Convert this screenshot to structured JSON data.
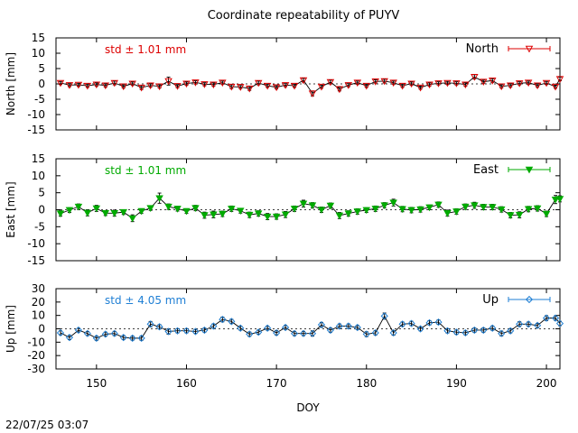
{
  "chart_data": [
    {
      "type": "line",
      "title": "Coordinate repeatability of PUYV",
      "ylabel": "North [mm]",
      "xlabel": "",
      "xlim": [
        145.5,
        201.5
      ],
      "ylim": [
        -15,
        15
      ],
      "yticks": [
        "15",
        "10",
        "5",
        "0",
        "-5",
        "-10",
        "-15"
      ],
      "xticks": [],
      "std_label": "std ± 1.01 mm",
      "legend": "North",
      "color": "#dd0000",
      "marker": "triangle-down-open",
      "x": [
        146,
        147,
        148,
        149,
        150,
        151,
        152,
        153,
        154,
        155,
        156,
        157,
        158,
        159,
        160,
        161,
        162,
        163,
        164,
        165,
        166,
        167,
        168,
        169,
        170,
        171,
        172,
        173,
        174,
        175,
        176,
        177,
        178,
        179,
        180,
        181,
        182,
        183,
        184,
        185,
        186,
        187,
        188,
        189,
        190,
        191,
        192,
        193,
        194,
        195,
        196,
        197,
        198,
        199,
        200,
        201,
        201.5
      ],
      "values": [
        0.3,
        -0.4,
        -0.3,
        -0.6,
        -0.2,
        -0.5,
        0.3,
        -0.8,
        0.1,
        -1.2,
        -0.5,
        -0.8,
        0.9,
        -0.7,
        0.1,
        0.5,
        -0.1,
        -0.2,
        0.4,
        -0.9,
        -1.0,
        -1.5,
        0.3,
        -0.6,
        -1.1,
        -0.4,
        -0.6,
        1.2,
        -3.1,
        -0.9,
        0.6,
        -1.7,
        -0.4,
        0.4,
        -0.6,
        0.8,
        0.9,
        0.4,
        -0.6,
        0.1,
        -1.2,
        -0.2,
        0.2,
        0.3,
        0.2,
        -0.2,
        2.3,
        0.7,
        1.1,
        -0.8,
        -0.5,
        0.2,
        0.4,
        -0.5,
        0.3,
        -0.9,
        1.6
      ],
      "errors": [
        0.5,
        0.5,
        0.5,
        0.5,
        0.5,
        0.5,
        0.6,
        0.5,
        0.5,
        0.6,
        0.5,
        0.5,
        1.3,
        0.5,
        0.5,
        0.5,
        0.5,
        0.5,
        0.5,
        0.6,
        0.5,
        0.6,
        0.6,
        0.5,
        0.5,
        0.5,
        0.5,
        0.6,
        0.8,
        0.5,
        0.6,
        0.6,
        0.5,
        0.5,
        0.5,
        0.5,
        0.6,
        0.5,
        0.5,
        0.5,
        0.5,
        0.5,
        0.5,
        0.5,
        0.5,
        0.5,
        0.7,
        0.5,
        0.6,
        0.5,
        0.5,
        0.5,
        0.5,
        0.5,
        0.5,
        0.5,
        0.6
      ]
    },
    {
      "type": "line",
      "title": "",
      "ylabel": "East [mm]",
      "xlabel": "",
      "xlim": [
        145.5,
        201.5
      ],
      "ylim": [
        -15,
        15
      ],
      "yticks": [
        "15",
        "10",
        "5",
        "0",
        "-5",
        "-10",
        "-15"
      ],
      "xticks": [],
      "std_label": "std ± 1.01 mm",
      "legend": "East",
      "color": "#00aa00",
      "marker": "triangle-down-filled",
      "x": [
        146,
        147,
        148,
        149,
        150,
        151,
        152,
        153,
        154,
        155,
        156,
        157,
        158,
        159,
        160,
        161,
        162,
        163,
        164,
        165,
        166,
        167,
        168,
        169,
        170,
        171,
        172,
        173,
        174,
        175,
        176,
        177,
        178,
        179,
        180,
        181,
        182,
        183,
        184,
        185,
        186,
        187,
        188,
        189,
        190,
        191,
        192,
        193,
        194,
        195,
        196,
        197,
        198,
        199,
        200,
        201,
        201.5
      ],
      "values": [
        -1.1,
        -0.1,
        0.9,
        -0.9,
        0.4,
        -1.0,
        -1.0,
        -0.7,
        -2.5,
        -0.4,
        0.5,
        3.4,
        0.9,
        0.3,
        -0.4,
        0.5,
        -1.6,
        -1.4,
        -1.2,
        0.3,
        -0.3,
        -1.5,
        -1.1,
        -2.0,
        -2.0,
        -1.4,
        0.3,
        1.8,
        1.3,
        0.0,
        1.2,
        -1.7,
        -1.1,
        -0.5,
        -0.1,
        0.3,
        1.3,
        2.1,
        0.2,
        -0.1,
        0.1,
        0.7,
        1.5,
        -1.0,
        -0.5,
        0.9,
        1.3,
        0.8,
        0.8,
        0.1,
        -1.6,
        -1.5,
        0.2,
        0.4,
        -1.2,
        3.0,
        3.2
      ],
      "errors": [
        0.8,
        0.7,
        0.8,
        0.9,
        0.9,
        0.7,
        0.9,
        0.7,
        1.0,
        0.7,
        0.7,
        1.5,
        0.8,
        0.7,
        0.7,
        0.8,
        0.9,
        1.0,
        0.8,
        0.8,
        0.7,
        0.8,
        0.8,
        0.9,
        0.8,
        0.9,
        0.8,
        1.0,
        0.8,
        0.8,
        0.8,
        0.9,
        0.8,
        0.8,
        0.7,
        0.8,
        0.8,
        1.0,
        0.8,
        0.8,
        0.8,
        0.7,
        0.8,
        0.9,
        0.8,
        0.8,
        0.9,
        0.8,
        0.8,
        0.8,
        0.8,
        0.9,
        0.8,
        0.8,
        0.8,
        1.2,
        0.9
      ]
    },
    {
      "type": "line",
      "title": "",
      "ylabel": "Up [mm]",
      "xlabel": "DOY",
      "xlim": [
        145.5,
        201.5
      ],
      "ylim": [
        -30,
        30
      ],
      "yticks": [
        "30",
        "20",
        "10",
        "0",
        "-10",
        "-20",
        "-30"
      ],
      "xticks": [
        "150",
        "160",
        "170",
        "180",
        "190",
        "200"
      ],
      "std_label": "std ± 4.05 mm",
      "legend": "Up",
      "color": "#1f7fd4",
      "marker": "diamond-open",
      "x": [
        146,
        147,
        148,
        149,
        150,
        151,
        152,
        153,
        154,
        155,
        156,
        157,
        158,
        159,
        160,
        161,
        162,
        163,
        164,
        165,
        166,
        167,
        168,
        169,
        170,
        171,
        172,
        173,
        174,
        175,
        176,
        177,
        178,
        179,
        180,
        181,
        182,
        183,
        184,
        185,
        186,
        187,
        188,
        189,
        190,
        191,
        192,
        193,
        194,
        195,
        196,
        197,
        198,
        199,
        200,
        201,
        201.5
      ],
      "values": [
        -3.0,
        -6.5,
        -1.0,
        -3.5,
        -7.0,
        -4.0,
        -3.5,
        -6.5,
        -7.0,
        -7.0,
        3.5,
        1.5,
        -2.0,
        -1.5,
        -1.5,
        -2.0,
        -1.0,
        2.0,
        7.0,
        5.5,
        0.5,
        -4.0,
        -2.5,
        0.5,
        -3.0,
        1.0,
        -3.5,
        -3.5,
        -3.5,
        3.0,
        -1.0,
        2.0,
        2.0,
        1.0,
        -4.0,
        -3.0,
        9.5,
        -3.0,
        3.5,
        4.0,
        0.0,
        4.5,
        5.0,
        -1.5,
        -2.5,
        -3.0,
        -1.0,
        -1.0,
        0.5,
        -3.5,
        -1.5,
        3.5,
        3.5,
        2.5,
        8.0,
        8.0,
        4.0
      ],
      "errors": [
        1.5,
        1.6,
        1.4,
        1.5,
        1.6,
        1.5,
        1.6,
        1.5,
        1.5,
        1.6,
        2.0,
        1.6,
        2.0,
        1.5,
        1.5,
        1.5,
        1.5,
        1.6,
        1.8,
        1.6,
        1.5,
        1.6,
        1.5,
        1.5,
        1.6,
        1.5,
        1.6,
        1.6,
        2.0,
        1.8,
        1.6,
        1.6,
        1.6,
        1.5,
        1.8,
        1.6,
        2.3,
        1.8,
        1.6,
        1.6,
        1.5,
        1.6,
        1.6,
        1.6,
        1.6,
        1.5,
        1.6,
        1.6,
        1.6,
        1.8,
        1.6,
        1.8,
        1.6,
        1.6,
        1.8,
        1.6,
        1.6
      ]
    }
  ],
  "footer": {
    "timestamp": "22/07/25 03:07"
  }
}
